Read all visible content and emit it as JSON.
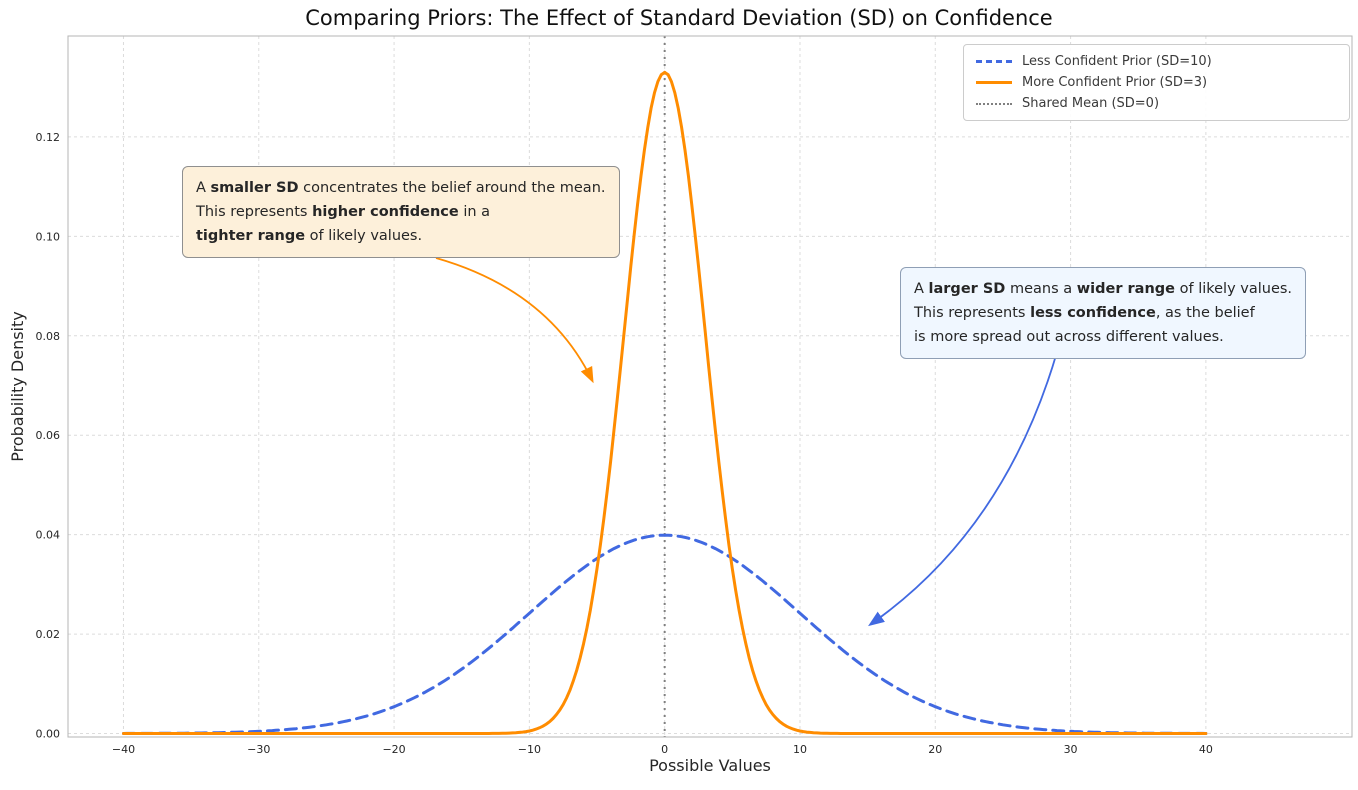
{
  "chart_data": {
    "type": "line",
    "title": "Comparing Priors: The Effect of Standard Deviation (SD) on Confidence",
    "xlabel": "Possible Values",
    "ylabel": "Probability Density",
    "xlim": [
      -44.1,
      50.8
    ],
    "ylim": [
      -0.0007,
      0.1403
    ],
    "grid": true,
    "legend_position": "upper right",
    "x_ticks": [
      {
        "value": -40,
        "label": "−40"
      },
      {
        "value": -30,
        "label": "−30"
      },
      {
        "value": -20,
        "label": "−20"
      },
      {
        "value": -10,
        "label": "−10"
      },
      {
        "value": 0,
        "label": "0"
      },
      {
        "value": 10,
        "label": "10"
      },
      {
        "value": 20,
        "label": "20"
      },
      {
        "value": 30,
        "label": "30"
      },
      {
        "value": 40,
        "label": "40"
      }
    ],
    "y_ticks": [
      {
        "value": 0,
        "label": "0.00"
      },
      {
        "value": 0.02,
        "label": "0.02"
      },
      {
        "value": 0.04,
        "label": "0.04"
      },
      {
        "value": 0.06,
        "label": "0.06"
      },
      {
        "value": 0.08,
        "label": "0.08"
      },
      {
        "value": 0.1,
        "label": "0.10"
      },
      {
        "value": 0.12,
        "label": "0.12"
      }
    ],
    "series": [
      {
        "id": "sd10",
        "name": "Less Confident Prior (SD=10)",
        "distribution": "normal",
        "mean": 0,
        "sd": 10,
        "x_range": [
          -40,
          40
        ],
        "peak_density": 0.0399,
        "color": "#4169e1",
        "line_style": "dashed",
        "line_width": 3
      },
      {
        "id": "sd3",
        "name": "More Confident Prior (SD=3)",
        "distribution": "normal",
        "mean": 0,
        "sd": 3,
        "x_range": [
          -40,
          40
        ],
        "peak_density": 0.133,
        "color": "#ff8c00",
        "line_style": "solid",
        "line_width": 3
      }
    ],
    "vline": {
      "x": 0,
      "label": "Shared Mean (SD=0)",
      "color": "#808080",
      "line_style": "dotted",
      "line_width": 2
    }
  },
  "annotations": [
    {
      "id": "smaller-sd",
      "bg": "#fdf0da",
      "border": "#8f8f8f",
      "arrow_color": "#ff8c00",
      "lines": [
        [
          {
            "t": "A "
          },
          {
            "t": "smaller SD",
            "b": true
          },
          {
            "t": " concentrates the belief around the mean."
          }
        ],
        [
          {
            "t": "This represents "
          },
          {
            "t": "higher confidence",
            "b": true
          },
          {
            "t": " in a"
          }
        ],
        [
          {
            "t": "tighter range",
            "b": true
          },
          {
            "t": " of likely values."
          }
        ]
      ]
    },
    {
      "id": "larger-sd",
      "bg": "#f0f7ff",
      "border": "#8f9fb5",
      "arrow_color": "#4169e1",
      "lines": [
        [
          {
            "t": "A "
          },
          {
            "t": "larger SD",
            "b": true
          },
          {
            "t": " means a "
          },
          {
            "t": "wider range",
            "b": true
          },
          {
            "t": " of likely values."
          }
        ],
        [
          {
            "t": "This represents "
          },
          {
            "t": "less confidence",
            "b": true
          },
          {
            "t": ", as the belief"
          }
        ],
        [
          {
            "t": "is more spread out across different values."
          }
        ]
      ]
    }
  ]
}
